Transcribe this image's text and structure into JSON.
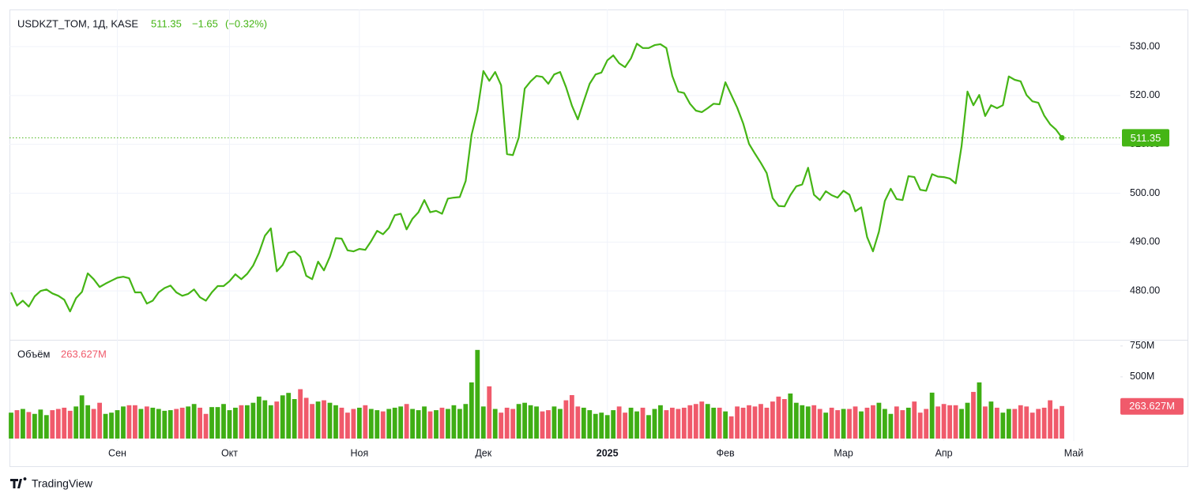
{
  "branding": "TradingView",
  "chart_data": [
    {
      "type": "line",
      "title": "USDKZT_TOM, 1Д, KASE",
      "color": "#45b515",
      "change": {
        "value": -1.65,
        "label": "−1.65"
      },
      "change_percent": {
        "value": -0.32,
        "label": "(−0.32%)"
      },
      "values": [
        479.7,
        477,
        478,
        476.8,
        478.9,
        480,
        480.3,
        479.5,
        479,
        478.2,
        475.8,
        478.5,
        479.8,
        483.6,
        482.4,
        480.8,
        481.5,
        482.1,
        482.7,
        482.9,
        482.6,
        479.7,
        479.7,
        477.4,
        478,
        479.7,
        480.6,
        481.1,
        479.7,
        479,
        479.4,
        480.3,
        478.7,
        478,
        479.7,
        481,
        481,
        482,
        483.4,
        482.4,
        483.5,
        485.2,
        487.8,
        491.3,
        492.8,
        484,
        485.3,
        487.8,
        488.1,
        487,
        483.1,
        482.4,
        486,
        484.2,
        487,
        490.8,
        490.7,
        488.3,
        488.1,
        488.6,
        488.4,
        490.2,
        492.3,
        491.6,
        492.9,
        495.5,
        495.8,
        492.6,
        494.8,
        496.1,
        498.6,
        496.1,
        496.4,
        495.8,
        498.9,
        499.1,
        499.2,
        502.5,
        511.9,
        516.9,
        525,
        523,
        524.8,
        522.1,
        508,
        507.8,
        511.4,
        521.4,
        522.9,
        524,
        523.8,
        522.4,
        524.3,
        524.8,
        521.7,
        517.9,
        515.1,
        518.8,
        522.4,
        524.3,
        524.7,
        527.2,
        528.2,
        526.6,
        525.8,
        527.6,
        530.6,
        529.7,
        529.7,
        530.3,
        530.5,
        529.7,
        524,
        520.8,
        520.5,
        518.3,
        516.9,
        516.6,
        517.4,
        518.3,
        518.2,
        522.7,
        520.1,
        517.5,
        514.3,
        510.1,
        508.1,
        506.2,
        504.1,
        499,
        497.4,
        497.3,
        499.6,
        501.4,
        501.8,
        505.2,
        499.7,
        498.6,
        500.4,
        499.6,
        499.1,
        500.5,
        499.7,
        496.3,
        497.1,
        491,
        488.1,
        492.1,
        498.4,
        500.9,
        498.8,
        498.6,
        503.5,
        503.3,
        500.7,
        500.5,
        503.9,
        503.4,
        503.3,
        503,
        502,
        509.6,
        520.8,
        518,
        520.1,
        515.8,
        518,
        517.4,
        518,
        523.9,
        523.2,
        522.9,
        520.1,
        518.8,
        518.5,
        515.9,
        514.1,
        513,
        511.35,
        null,
        null
      ],
      "ylim": [
        470,
        537.6
      ],
      "yticks": [
        {
          "value": 480,
          "label": "480.00"
        },
        {
          "value": 490,
          "label": "490.00"
        },
        {
          "value": 500,
          "label": "500.00"
        },
        {
          "value": 510,
          "label": "510.00"
        },
        {
          "value": 520,
          "label": "520.00"
        },
        {
          "value": 530,
          "label": "530.00"
        }
      ],
      "grid": true
    },
    {
      "type": "bar",
      "title": "Объём",
      "up_color": "#3fae14",
      "down_color": "#f05a6b",
      "categories": [
        null,
        null,
        null,
        null,
        null,
        null,
        null,
        null,
        null,
        null,
        null,
        null,
        null,
        null,
        null,
        null,
        null,
        null,
        "Сен",
        null,
        null,
        null,
        null,
        null,
        null,
        null,
        null,
        null,
        null,
        null,
        null,
        null,
        null,
        null,
        null,
        null,
        null,
        "Окт",
        null,
        null,
        null,
        null,
        null,
        null,
        null,
        null,
        null,
        null,
        null,
        null,
        null,
        null,
        null,
        null,
        null,
        null,
        null,
        null,
        null,
        "Ноя",
        null,
        null,
        null,
        null,
        null,
        null,
        null,
        null,
        null,
        null,
        null,
        null,
        null,
        null,
        null,
        null,
        null,
        null,
        null,
        null,
        "Дек",
        null,
        null,
        null,
        null,
        null,
        null,
        null,
        null,
        null,
        null,
        null,
        null,
        null,
        null,
        null,
        null,
        null,
        null,
        null,
        null,
        "2025",
        null,
        null,
        null,
        null,
        null,
        null,
        null,
        null,
        null,
        null,
        null,
        null,
        null,
        null,
        null,
        null,
        null,
        null,
        null,
        "Фев",
        null,
        null,
        null,
        null,
        null,
        null,
        null,
        null,
        null,
        null,
        null,
        null,
        null,
        null,
        null,
        null,
        null,
        null,
        null,
        "Мар",
        null,
        null,
        null,
        null,
        null,
        null,
        null,
        null,
        null,
        null,
        null,
        null,
        null,
        null,
        null,
        null,
        "Апр",
        null,
        null,
        null,
        null,
        null,
        null,
        null,
        null,
        null,
        null,
        null,
        null,
        null,
        null,
        null,
        null,
        null,
        null,
        null,
        null,
        null,
        "Май"
      ],
      "values": [
        210,
        230,
        240,
        215,
        200,
        235,
        190,
        230,
        240,
        250,
        225,
        260,
        350,
        270,
        240,
        290,
        200,
        210,
        230,
        260,
        270,
        270,
        240,
        260,
        250,
        240,
        225,
        230,
        240,
        250,
        260,
        280,
        250,
        200,
        255,
        255,
        280,
        230,
        250,
        270,
        270,
        290,
        340,
        310,
        270,
        300,
        350,
        370,
        320,
        400,
        330,
        280,
        300,
        310,
        290,
        270,
        250,
        210,
        240,
        250,
        270,
        240,
        230,
        220,
        240,
        250,
        260,
        280,
        240,
        230,
        260,
        220,
        230,
        250,
        240,
        270,
        240,
        280,
        455,
        718,
        260,
        423,
        240,
        210,
        250,
        240,
        280,
        290,
        270,
        260,
        220,
        230,
        260,
        240,
        310,
        352,
        260,
        250,
        230,
        200,
        210,
        190,
        230,
        260,
        210,
        250,
        220,
        250,
        190,
        240,
        270,
        230,
        250,
        240,
        250,
        270,
        280,
        300,
        280,
        250,
        250,
        220,
        180,
        260,
        250,
        270,
        260,
        280,
        250,
        300,
        340,
        320,
        365,
        290,
        270,
        260,
        270,
        240,
        210,
        250,
        230,
        240,
        240,
        260,
        220,
        250,
        270,
        290,
        240,
        200,
        260,
        230,
        250,
        300,
        210,
        240,
        372,
        260,
        280,
        270,
        270,
        240,
        290,
        378,
        455,
        260,
        300,
        250,
        210,
        240,
        240,
        270,
        260,
        210,
        240,
        250,
        310,
        240,
        263.627,
        null,
        null
      ],
      "value_labels": [
        null,
        null,
        null,
        null,
        null,
        null,
        null,
        null,
        null,
        null,
        null,
        null,
        null,
        null,
        null,
        null,
        null,
        null,
        null,
        null,
        null,
        null,
        null,
        null,
        null,
        null,
        null,
        null,
        null,
        null,
        null,
        null,
        null,
        null,
        null,
        null,
        null,
        null,
        null,
        null,
        null,
        null,
        null,
        null,
        null,
        null,
        null,
        null,
        null,
        null,
        null,
        null,
        null,
        null,
        null,
        null,
        null,
        null,
        null,
        null,
        null,
        null,
        null,
        null,
        null,
        null,
        null,
        null,
        null,
        null,
        null,
        null,
        null,
        null,
        null,
        null,
        null,
        null,
        null,
        null,
        null,
        null,
        null,
        null,
        null,
        null,
        null,
        null,
        null,
        null,
        null,
        null,
        null,
        null,
        null,
        null,
        null,
        null,
        null,
        null,
        null,
        null,
        null,
        null,
        null,
        null,
        null,
        null,
        null,
        null,
        null,
        null,
        null,
        null,
        null,
        null,
        null,
        null,
        null,
        null,
        null,
        null,
        null,
        null,
        null,
        null,
        null,
        null,
        null,
        null,
        null,
        null,
        null,
        null,
        null,
        null,
        null,
        null,
        null,
        null,
        null,
        null,
        null,
        null,
        null,
        null,
        null,
        null,
        null,
        null,
        null,
        null,
        null,
        null,
        null,
        null,
        null,
        null,
        null,
        null,
        null,
        null,
        null,
        null,
        null,
        null,
        null,
        null,
        null,
        null,
        null,
        null,
        null,
        null,
        null,
        null,
        null,
        null,
        "263.627M",
        null,
        null
      ],
      "ylim": [
        0,
        800
      ],
      "yticks": [
        {
          "value": 500,
          "label": "500M"
        },
        {
          "value": 750,
          "label": "750M"
        }
      ]
    }
  ]
}
